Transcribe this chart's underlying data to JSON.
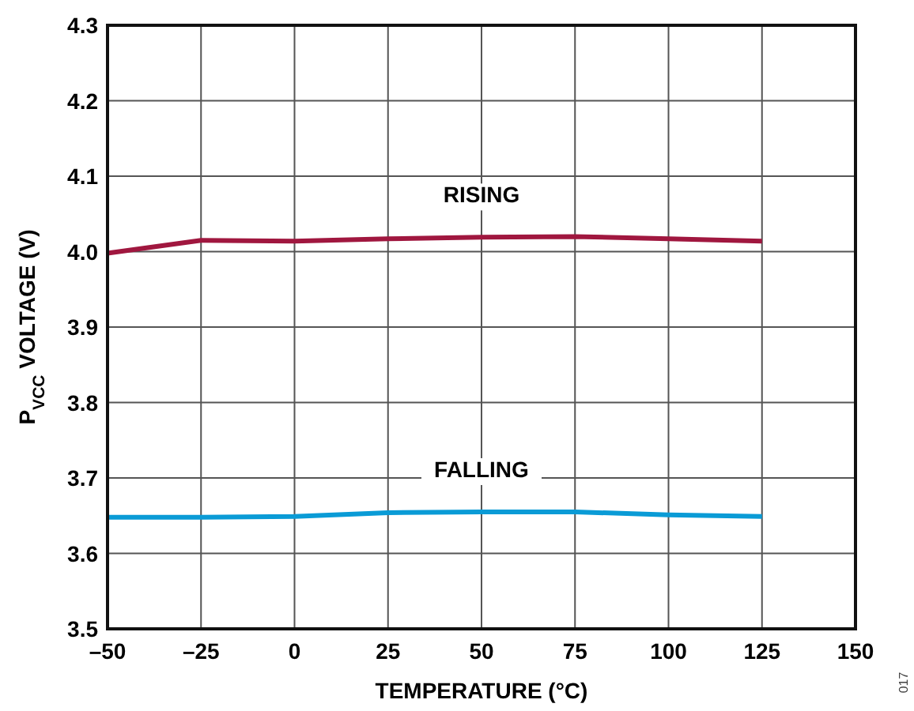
{
  "chart_data": {
    "type": "line",
    "xlabel": "TEMPERATURE (°C)",
    "ylabel": "P$_{VCC}$ VOLTAGE (V)",
    "x": [
      -50,
      -25,
      0,
      25,
      50,
      75,
      100,
      125
    ],
    "series": [
      {
        "name": "RISING",
        "color": "#a0173f",
        "values": [
          3.998,
          4.015,
          4.014,
          4.017,
          4.019,
          4.02,
          4.017,
          4.014
        ]
      },
      {
        "name": "FALLING",
        "color": "#0a9bd6",
        "values": [
          3.648,
          3.648,
          3.649,
          3.654,
          3.655,
          3.655,
          3.651,
          3.649
        ]
      }
    ],
    "xlim": [
      -50,
      150
    ],
    "xticks": [
      {
        "value": -50,
        "label": "–50"
      },
      {
        "value": -25,
        "label": "–25"
      },
      0,
      25,
      50,
      75,
      100,
      125,
      150
    ],
    "ylim": [
      3.5,
      4.3
    ],
    "yticks": [
      {
        "value": 3.5,
        "label": "3.5"
      },
      3.6,
      3.7,
      3.8,
      3.9,
      {
        "value": 4.0,
        "label": "4.0"
      },
      4.1,
      4.2,
      4.3
    ],
    "grid": true,
    "marker": "none",
    "line_style": "solid",
    "annotations": [
      "017"
    ]
  }
}
